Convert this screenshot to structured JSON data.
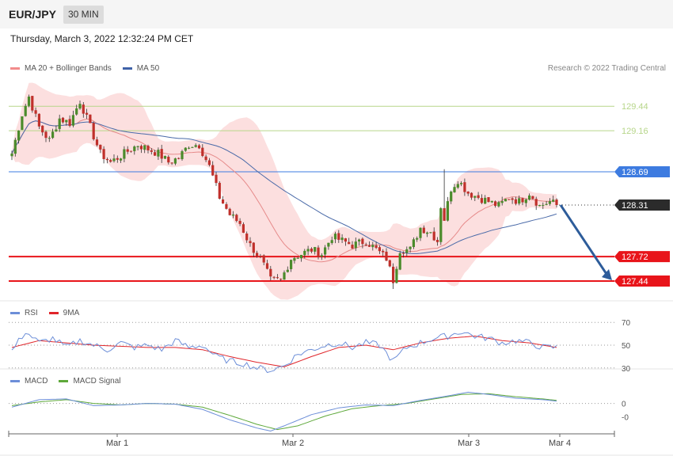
{
  "header": {
    "symbol": "EUR/JPY",
    "interval": "30 MIN"
  },
  "timestamp": "Thursday, March 3, 2022 12:32:24 PM CET",
  "credit": "Research © 2022 Trading Central",
  "colors": {
    "up": "#4b8b2b",
    "down": "#c0302b",
    "band": "#fbd9d9",
    "ma20": "#e68a8a",
    "ma50": "#4a6aa8",
    "resistance": "#b7d68a",
    "pivot": "#3d7be0",
    "support": "#e8141a",
    "rsi": "#6c8ed8",
    "rsi_ma": "#e0252a",
    "macd": "#6c8ed8",
    "macd_signal": "#5ea83a",
    "forecast": "#2d5c9a"
  },
  "chart_data": [
    {
      "type": "candlestick",
      "legend": [
        {
          "name": "MA 20 + Bollinger Bands",
          "color": "#f28b8b"
        },
        {
          "name": "MA 50",
          "color": "#3f62a8"
        }
      ],
      "x_ticks": [
        "Mar 1",
        "Mar 2",
        "Mar 3",
        "Mar 4"
      ],
      "ylim": [
        127.25,
        129.75
      ],
      "levels": [
        {
          "value": 129.44,
          "label": "129.44",
          "kind": "resistance"
        },
        {
          "value": 129.16,
          "label": "129.16",
          "kind": "resistance"
        },
        {
          "value": 128.69,
          "label": "128.69",
          "kind": "pivot"
        },
        {
          "value": 128.31,
          "label": "128.31",
          "kind": "current"
        },
        {
          "value": 127.72,
          "label": "127.72",
          "kind": "support"
        },
        {
          "value": 127.44,
          "label": "127.44",
          "kind": "support"
        }
      ],
      "price_path": [
        [
          0,
          128.9
        ],
        [
          3,
          129.35
        ],
        [
          5,
          129.55
        ],
        [
          8,
          129.2
        ],
        [
          11,
          129.05
        ],
        [
          14,
          129.3
        ],
        [
          17,
          129.25
        ],
        [
          20,
          129.5
        ],
        [
          23,
          129.2
        ],
        [
          26,
          128.9
        ],
        [
          29,
          128.8
        ],
        [
          33,
          128.9
        ],
        [
          37,
          129.0
        ],
        [
          40,
          128.95
        ],
        [
          43,
          128.9
        ],
        [
          46,
          128.8
        ],
        [
          49,
          128.85
        ],
        [
          52,
          129.0
        ],
        [
          55,
          129.0
        ],
        [
          58,
          128.75
        ],
        [
          61,
          128.4
        ],
        [
          64,
          128.2
        ],
        [
          67,
          128.1
        ],
        [
          70,
          127.85
        ],
        [
          73,
          127.7
        ],
        [
          76,
          127.45
        ],
        [
          79,
          127.45
        ],
        [
          82,
          127.7
        ],
        [
          85,
          127.75
        ],
        [
          88,
          127.8
        ],
        [
          91,
          127.75
        ],
        [
          94,
          127.95
        ],
        [
          97,
          127.9
        ],
        [
          100,
          127.85
        ],
        [
          104,
          127.9
        ],
        [
          107,
          127.8
        ],
        [
          110,
          127.7
        ],
        [
          112,
          127.45
        ],
        [
          114,
          127.8
        ],
        [
          117,
          127.8
        ],
        [
          120,
          128.05
        ],
        [
          123,
          128.0
        ],
        [
          125,
          127.9
        ],
        [
          126,
          128.3
        ],
        [
          127,
          128.15
        ],
        [
          129,
          128.5
        ],
        [
          131,
          128.6
        ],
        [
          134,
          128.45
        ],
        [
          137,
          128.4
        ],
        [
          140,
          128.35
        ],
        [
          143,
          128.3
        ],
        [
          146,
          128.4
        ],
        [
          149,
          128.35
        ],
        [
          152,
          128.45
        ],
        [
          155,
          128.3
        ],
        [
          158,
          128.35
        ],
        [
          160,
          128.31
        ]
      ],
      "bull_wicks": [
        [
          127,
          128.72
        ]
      ],
      "bear_wicks": [
        [
          112,
          127.35
        ]
      ],
      "forecast_target": 127.44
    },
    {
      "type": "line",
      "legend": [
        {
          "name": "RSI",
          "color": "#6c8ed8"
        },
        {
          "name": "9MA",
          "color": "#e0252a"
        }
      ],
      "y_ticks": [
        70,
        50,
        30
      ],
      "ylim": [
        25,
        75
      ],
      "rsi_path": [
        [
          0,
          45
        ],
        [
          4,
          62
        ],
        [
          8,
          52
        ],
        [
          12,
          56
        ],
        [
          16,
          48
        ],
        [
          20,
          54
        ],
        [
          24,
          50
        ],
        [
          28,
          46
        ],
        [
          32,
          52
        ],
        [
          36,
          48
        ],
        [
          40,
          50
        ],
        [
          44,
          46
        ],
        [
          48,
          54
        ],
        [
          52,
          48
        ],
        [
          56,
          50
        ],
        [
          60,
          40
        ],
        [
          64,
          36
        ],
        [
          68,
          34
        ],
        [
          72,
          30
        ],
        [
          76,
          28
        ],
        [
          80,
          32
        ],
        [
          84,
          42
        ],
        [
          88,
          46
        ],
        [
          92,
          50
        ],
        [
          96,
          52
        ],
        [
          100,
          48
        ],
        [
          104,
          52
        ],
        [
          108,
          50
        ],
        [
          112,
          36
        ],
        [
          116,
          48
        ],
        [
          120,
          52
        ],
        [
          124,
          56
        ],
        [
          128,
          58
        ],
        [
          132,
          62
        ],
        [
          136,
          58
        ],
        [
          140,
          56
        ],
        [
          144,
          52
        ],
        [
          148,
          54
        ],
        [
          152,
          52
        ],
        [
          156,
          48
        ],
        [
          160,
          48
        ]
      ],
      "ma_path": [
        [
          0,
          48
        ],
        [
          8,
          54
        ],
        [
          16,
          52
        ],
        [
          24,
          50
        ],
        [
          32,
          49
        ],
        [
          40,
          48
        ],
        [
          48,
          48
        ],
        [
          56,
          46
        ],
        [
          64,
          40
        ],
        [
          72,
          35
        ],
        [
          80,
          31
        ],
        [
          88,
          40
        ],
        [
          96,
          48
        ],
        [
          104,
          50
        ],
        [
          112,
          46
        ],
        [
          120,
          52
        ],
        [
          128,
          56
        ],
        [
          136,
          58
        ],
        [
          144,
          54
        ],
        [
          152,
          52
        ],
        [
          160,
          48
        ]
      ]
    },
    {
      "type": "line",
      "legend": [
        {
          "name": "MACD",
          "color": "#6c8ed8"
        },
        {
          "name": "MACD Signal",
          "color": "#5ea83a"
        }
      ],
      "y_ticks": [
        "0",
        "-0"
      ],
      "ylim": [
        -0.45,
        0.25
      ],
      "macd_path": [
        [
          0,
          -0.05
        ],
        [
          8,
          0.05
        ],
        [
          16,
          0.06
        ],
        [
          24,
          -0.03
        ],
        [
          32,
          -0.02
        ],
        [
          40,
          0.0
        ],
        [
          48,
          -0.01
        ],
        [
          56,
          -0.08
        ],
        [
          64,
          -0.22
        ],
        [
          72,
          -0.33
        ],
        [
          76,
          -0.37
        ],
        [
          80,
          -0.3
        ],
        [
          88,
          -0.15
        ],
        [
          96,
          -0.06
        ],
        [
          104,
          -0.02
        ],
        [
          112,
          -0.03
        ],
        [
          120,
          0.04
        ],
        [
          128,
          0.1
        ],
        [
          134,
          0.15
        ],
        [
          140,
          0.12
        ],
        [
          148,
          0.07
        ],
        [
          156,
          0.05
        ],
        [
          160,
          0.03
        ]
      ],
      "signal_path": [
        [
          0,
          -0.03
        ],
        [
          8,
          0.02
        ],
        [
          16,
          0.05
        ],
        [
          24,
          0.0
        ],
        [
          32,
          -0.02
        ],
        [
          40,
          0.0
        ],
        [
          48,
          -0.01
        ],
        [
          56,
          -0.05
        ],
        [
          64,
          -0.16
        ],
        [
          72,
          -0.28
        ],
        [
          78,
          -0.35
        ],
        [
          84,
          -0.3
        ],
        [
          92,
          -0.17
        ],
        [
          100,
          -0.07
        ],
        [
          108,
          -0.03
        ],
        [
          116,
          0.0
        ],
        [
          124,
          0.06
        ],
        [
          132,
          0.12
        ],
        [
          140,
          0.13
        ],
        [
          148,
          0.09
        ],
        [
          156,
          0.06
        ],
        [
          160,
          0.04
        ]
      ]
    }
  ]
}
